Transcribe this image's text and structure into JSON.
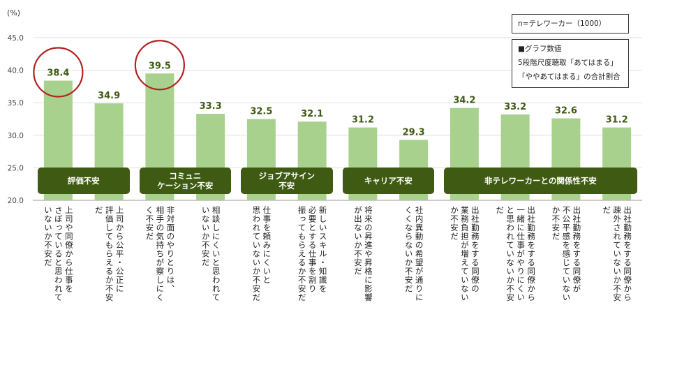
{
  "chart_data": {
    "type": "bar",
    "ylabel": "(%)",
    "ylim": [
      20,
      45
    ],
    "yticks": [
      "20.0",
      "25.0",
      "30.0",
      "35.0",
      "40.0",
      "45.0"
    ],
    "grid": true,
    "bar_color": "#a9d18e",
    "label_color": "#3f5a12",
    "highlight_color": "#b22222",
    "highlighted_indices": [
      0,
      2
    ],
    "categories": [
      "上司や同僚から仕事を\nさぼっていると思われて\nいないか不安だ",
      "上司から公平・公正に\n評価してもらえるか不安\nだ",
      "非対面のやりとりは、\n相手の気持ちが察しにく\nく不安だ",
      "相談しにくいと思われて\nいないか不安だ",
      "仕事を頼みにくいと\n思われていないか不安だ",
      "新しいスキル・知識を\n必要とする仕事を割り\n振ってもらえるか不安だ",
      "将来の昇進や昇格に影響\nが出ないか不安だ",
      "社内異動の希望が通りに\nくくならないか不安だ",
      "出社勤務をする同僚の\n業務負担が増えていない\nか不安だ",
      "出社勤務をする同僚から\n一緒に仕事がやりにくい\nと思われていないか不安\nだ",
      "出社勤務をする同僚が\n不公平感を感じていない\nか不安だ",
      "出社勤務をする同僚から\n疎外されていないか不安\nだ"
    ],
    "values": [
      38.4,
      34.9,
      39.5,
      33.3,
      32.5,
      32.1,
      31.2,
      29.3,
      34.2,
      33.2,
      32.6,
      31.2
    ],
    "value_labels": [
      "38.4",
      "34.9",
      "39.5",
      "33.3",
      "32.5",
      "32.1",
      "31.2",
      "29.3",
      "34.2",
      "33.2",
      "32.6",
      "31.2"
    ],
    "groups": [
      {
        "label": "評価不安",
        "start": 0,
        "end": 1
      },
      {
        "label": "コミュニ\nケーション不安",
        "start": 2,
        "end": 3
      },
      {
        "label": "ジョブアサイン\n不安",
        "start": 4,
        "end": 5
      },
      {
        "label": "キャリア不安",
        "start": 6,
        "end": 7
      },
      {
        "label": "非テレワーカーとの関係性不安",
        "start": 8,
        "end": 11
      }
    ]
  },
  "notes": {
    "sample": "n=テレワーカー（1000）",
    "method": "■グラフ数値\n5段階尺度聴取「あてはまる」\n「ややあてはまる」の合計割合"
  }
}
